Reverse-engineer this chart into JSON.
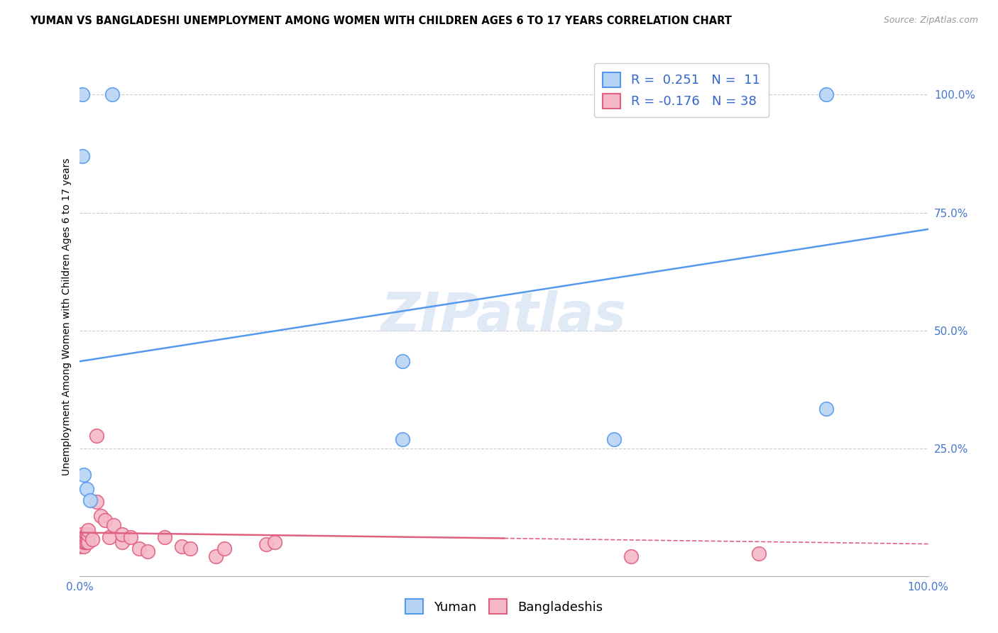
{
  "title": "YUMAN VS BANGLADESHI UNEMPLOYMENT AMONG WOMEN WITH CHILDREN AGES 6 TO 17 YEARS CORRELATION CHART",
  "source": "Source: ZipAtlas.com",
  "ylabel": "Unemployment Among Women with Children Ages 6 to 17 years",
  "xlim": [
    0.0,
    1.0
  ],
  "ylim": [
    -0.02,
    1.08
  ],
  "xtick_labels": [
    "0.0%",
    "100.0%"
  ],
  "xtick_positions": [
    0.0,
    1.0
  ],
  "ytick_labels": [
    "100.0%",
    "75.0%",
    "50.0%",
    "25.0%"
  ],
  "ytick_positions": [
    1.0,
    0.75,
    0.5,
    0.25
  ],
  "legend_labels": [
    "Yuman",
    "Bangladeshis"
  ],
  "watermark": "ZIPatlas",
  "yuman_color": "#b8d4f5",
  "bangladeshi_color": "#f5b8c8",
  "yuman_line_color": "#5599ee",
  "bangladeshi_line_color": "#e06080",
  "grid_color": "#cccccc",
  "R_yuman": 0.251,
  "N_yuman": 11,
  "R_bangladeshi": -0.176,
  "N_bangladeshi": 38,
  "yuman_points_x": [
    0.003,
    0.003,
    0.038,
    0.005,
    0.008,
    0.012,
    0.38,
    0.38,
    0.63,
    0.88,
    0.88
  ],
  "yuman_points_y": [
    1.0,
    0.87,
    1.0,
    0.195,
    0.165,
    0.14,
    0.27,
    0.435,
    0.27,
    0.335,
    1.0
  ],
  "bangladeshi_points_x": [
    0.0,
    0.0,
    0.0,
    0.002,
    0.003,
    0.003,
    0.005,
    0.005,
    0.005,
    0.006,
    0.007,
    0.008,
    0.008,
    0.009,
    0.01,
    0.01,
    0.01,
    0.015,
    0.02,
    0.02,
    0.025,
    0.03,
    0.035,
    0.04,
    0.05,
    0.05,
    0.06,
    0.07,
    0.08,
    0.1,
    0.12,
    0.13,
    0.16,
    0.17,
    0.22,
    0.23,
    0.65,
    0.8
  ],
  "bangladeshi_points_y": [
    0.065,
    0.052,
    0.042,
    0.068,
    0.048,
    0.058,
    0.042,
    0.052,
    0.062,
    0.052,
    0.058,
    0.068,
    0.052,
    0.058,
    0.052,
    0.068,
    0.078,
    0.058,
    0.278,
    0.138,
    0.108,
    0.098,
    0.062,
    0.088,
    0.052,
    0.068,
    0.062,
    0.038,
    0.032,
    0.062,
    0.042,
    0.038,
    0.022,
    0.038,
    0.048,
    0.052,
    0.022,
    0.028
  ],
  "yuman_line_x": [
    0.0,
    1.0
  ],
  "yuman_line_y": [
    0.435,
    0.715
  ],
  "bangladeshi_line_x": [
    0.0,
    1.0
  ],
  "bangladeshi_line_y": [
    0.072,
    0.048
  ],
  "bangladeshi_line_dash_start": 0.5,
  "title_fontsize": 10.5,
  "source_fontsize": 9,
  "axis_label_fontsize": 10,
  "tick_fontsize": 11
}
